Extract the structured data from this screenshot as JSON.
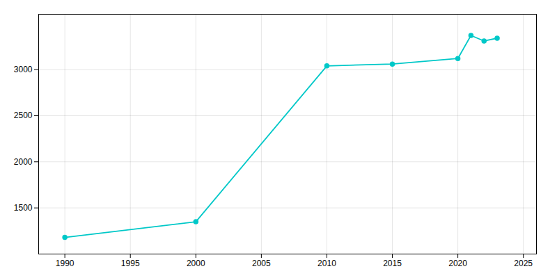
{
  "chart_data": {
    "type": "line",
    "x": [
      1990,
      2000,
      2010,
      2015,
      2020,
      2021,
      2022,
      2023
    ],
    "values": [
      1180,
      1350,
      3040,
      3060,
      3120,
      3370,
      3310,
      3340
    ],
    "color": "#00c8c8",
    "marker": "circle",
    "xlim": [
      1988,
      2026
    ],
    "ylim": [
      1000,
      3600
    ],
    "xticks": [
      1990,
      1995,
      2000,
      2005,
      2010,
      2015,
      2020,
      2025
    ],
    "yticks": [
      1500,
      2000,
      2500,
      3000
    ],
    "grid": true
  }
}
